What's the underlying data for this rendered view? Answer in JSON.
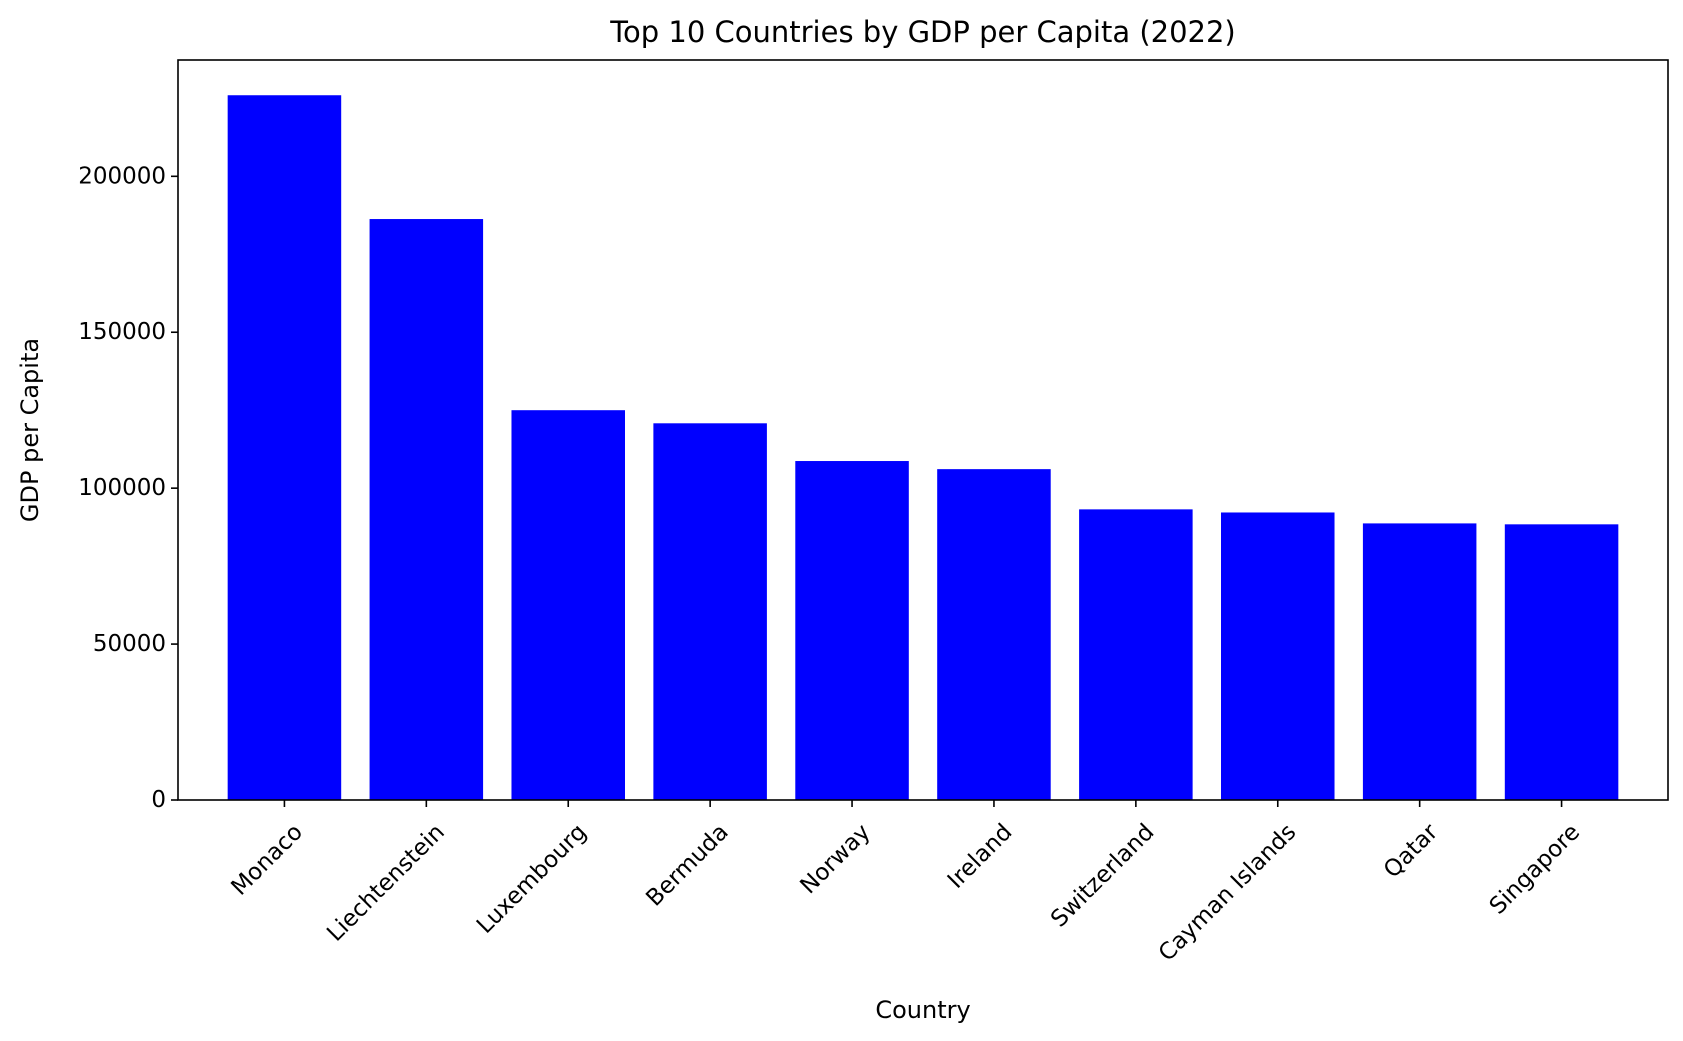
{
  "chart_data": {
    "type": "bar",
    "title": "Top 10 Countries by GDP per Capita (2022)",
    "xlabel": "Country",
    "ylabel": "GDP per Capita",
    "categories": [
      "Monaco",
      "Liechtenstein",
      "Luxembourg",
      "Bermuda",
      "Norway",
      "Ireland",
      "Switzerland",
      "Cayman Islands",
      "Qatar",
      "Singapore"
    ],
    "values": [
      226000,
      186300,
      125000,
      120800,
      108700,
      106100,
      93200,
      92200,
      88700,
      88400
    ],
    "ylim": [
      0,
      237300
    ],
    "yticks": [
      0,
      50000,
      100000,
      150000,
      200000
    ],
    "ytick_labels": [
      "0",
      "50000",
      "100000",
      "150000",
      "200000"
    ],
    "bar_color": "#0000ff",
    "grid": false,
    "legend": "none"
  }
}
